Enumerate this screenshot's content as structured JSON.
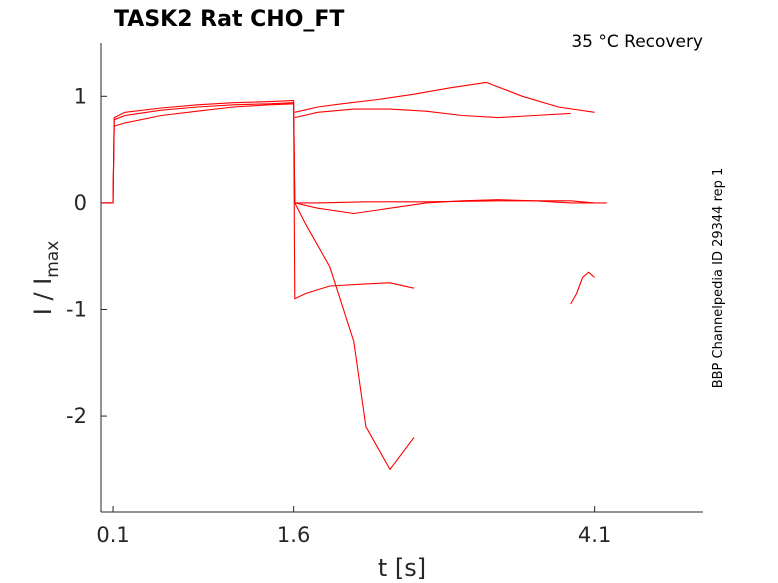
{
  "chart_data": {
    "type": "line",
    "title": "TASK2  Rat  CHO_FT",
    "subtitle": "35 °C  Recovery",
    "xlabel": "t [s]",
    "ylabel_main": "I / I",
    "ylabel_sub": "max",
    "side_label": "BBP Channelpedia ID 29344 rep 1",
    "xlim": [
      0.0,
      5.0
    ],
    "ylim": [
      -2.9,
      1.5
    ],
    "x_ticks": [
      0.1,
      1.6,
      4.1
    ],
    "x_tick_labels": [
      "0.1",
      "1.6",
      "4.1"
    ],
    "y_ticks": [
      -2,
      -1,
      0,
      1
    ],
    "y_tick_labels": [
      "-2",
      "-1",
      "0",
      "1"
    ],
    "grid": false,
    "legend": "none",
    "color": "#ff0000",
    "series": [
      {
        "x": [
          0.0,
          0.1,
          0.11,
          0.2,
          0.5,
          0.8,
          1.1,
          1.4,
          1.6,
          1.61,
          1.8,
          2.2,
          2.7,
          3.3,
          3.9,
          4.1
        ],
        "y": [
          0.0,
          0.0,
          0.78,
          0.82,
          0.87,
          0.9,
          0.92,
          0.93,
          0.94,
          0.0,
          0.0,
          0.01,
          0.01,
          0.02,
          0.02,
          0.0
        ]
      },
      {
        "x": [
          0.0,
          0.1,
          0.11,
          0.2,
          0.5,
          0.8,
          1.1,
          1.4,
          1.6,
          1.61,
          1.7,
          1.9,
          2.2,
          2.4,
          2.6
        ],
        "y": [
          0.0,
          0.0,
          0.72,
          0.75,
          0.82,
          0.86,
          0.9,
          0.92,
          0.93,
          -0.9,
          -0.85,
          -0.78,
          -0.76,
          -0.75,
          -0.8
        ]
      },
      {
        "x": [
          0.0,
          0.1,
          0.11,
          0.2,
          0.5,
          0.8,
          1.1,
          1.4,
          1.6,
          1.61,
          1.7,
          1.9,
          2.1,
          2.2,
          2.4,
          2.6
        ],
        "y": [
          0.0,
          0.0,
          0.8,
          0.85,
          0.89,
          0.92,
          0.94,
          0.95,
          0.96,
          0.0,
          -0.2,
          -0.6,
          -1.3,
          -2.1,
          -2.5,
          -2.2
        ]
      },
      {
        "x": [
          1.61,
          1.8,
          2.0,
          2.3,
          2.6,
          2.9,
          3.2,
          3.5,
          3.8,
          4.1
        ],
        "y": [
          0.85,
          0.9,
          0.93,
          0.97,
          1.02,
          1.08,
          1.13,
          1.0,
          0.9,
          0.85
        ]
      },
      {
        "x": [
          1.61,
          1.8,
          2.1,
          2.4,
          2.7,
          3.0,
          3.3,
          3.6,
          3.9
        ],
        "y": [
          0.8,
          0.85,
          0.88,
          0.88,
          0.86,
          0.82,
          0.8,
          0.82,
          0.84
        ]
      },
      {
        "x": [
          1.61,
          1.8,
          2.1,
          2.4,
          2.7,
          3.0,
          3.3,
          3.6,
          3.9,
          4.1,
          4.2
        ],
        "y": [
          0.0,
          -0.05,
          -0.1,
          -0.05,
          0.0,
          0.02,
          0.03,
          0.02,
          0.0,
          0.0,
          0.0
        ]
      },
      {
        "x": [
          3.9,
          3.95,
          4.0,
          4.05,
          4.1
        ],
        "y": [
          -0.95,
          -0.85,
          -0.7,
          -0.65,
          -0.7
        ]
      }
    ]
  }
}
